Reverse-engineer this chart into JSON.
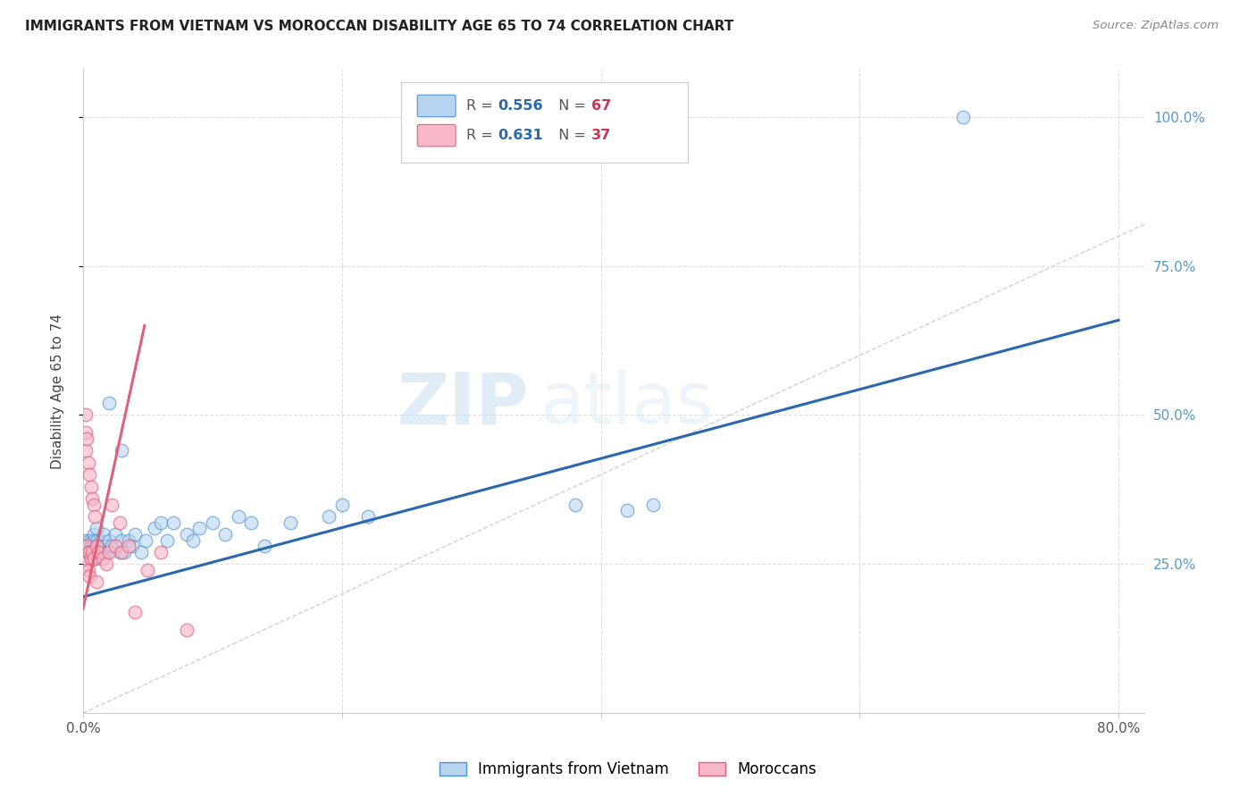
{
  "title": "IMMIGRANTS FROM VIETNAM VS MOROCCAN DISABILITY AGE 65 TO 74 CORRELATION CHART",
  "source": "Source: ZipAtlas.com",
  "ylabel": "Disability Age 65 to 74",
  "xlim": [
    0.0,
    0.82
  ],
  "ylim": [
    0.0,
    1.08
  ],
  "yticks": [
    0.25,
    0.5,
    0.75,
    1.0
  ],
  "ytick_labels": [
    "25.0%",
    "50.0%",
    "75.0%",
    "100.0%"
  ],
  "xticks": [
    0.0,
    0.2,
    0.4,
    0.6,
    0.8
  ],
  "xtick_labels": [
    "0.0%",
    "",
    "",
    "",
    "80.0%"
  ],
  "legend_line1_r": "0.556",
  "legend_line1_n": "67",
  "legend_line2_r": "0.631",
  "legend_line2_n": "37",
  "legend_label1": "Immigrants from Vietnam",
  "legend_label2": "Moroccans",
  "watermark_zip": "ZIP",
  "watermark_atlas": "atlas",
  "vietnam_line_color": "#2968b0",
  "moroccan_line_color": "#e0607a",
  "diagonal_line_color": "#cccccc",
  "dot_blue_face": "#b8d4f0",
  "dot_blue_edge": "#5090cc",
  "dot_pink_face": "#f8b8c8",
  "dot_pink_edge": "#e06080",
  "background_color": "#ffffff",
  "grid_color": "#e0e0e0",
  "right_axis_color": "#5599cc",
  "title_color": "#222222",
  "source_color": "#888888",
  "r_value_color": "#2968b0",
  "n_value_color": "#cc3355"
}
